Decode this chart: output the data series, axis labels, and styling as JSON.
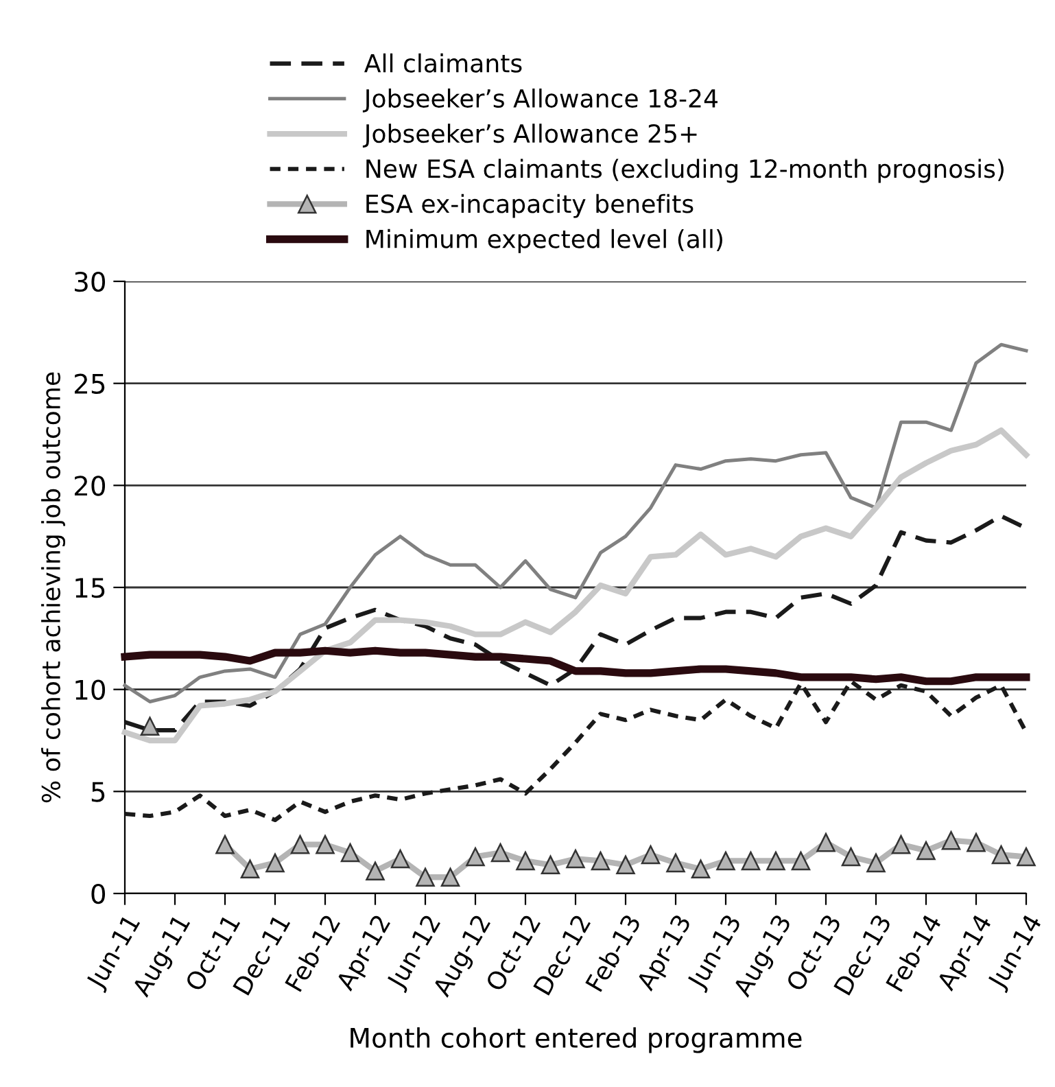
{
  "chart_data": {
    "type": "line",
    "xlabel": "Month cohort entered programme",
    "ylabel": "% of cohort achieving job outcome",
    "categories": [
      "Jun-11",
      null,
      "Aug-11",
      null,
      "Oct-11",
      null,
      "Dec-11",
      null,
      "Feb-12",
      null,
      "Apr-12",
      null,
      "Jun-12",
      null,
      "Aug-12",
      null,
      "Oct-12",
      null,
      "Dec-12",
      null,
      "Feb-13",
      null,
      "Apr-13",
      null,
      "Jun-13",
      null,
      "Aug-13",
      null,
      "Oct-13",
      null,
      "Dec-13",
      null,
      "Feb-14",
      null,
      "Apr-14",
      null,
      "Jun-14"
    ],
    "ylim": [
      0,
      30
    ],
    "yticks": [
      0,
      5,
      10,
      15,
      20,
      25,
      30
    ],
    "grid": "y",
    "legend": "top",
    "series": [
      {
        "name": "All claimants",
        "color": "#1a1a1a",
        "line_style": "dashed",
        "values": [
          8.4,
          8.0,
          8.0,
          9.4,
          9.4,
          9.2,
          9.9,
          11.0,
          13.0,
          13.5,
          13.9,
          13.4,
          13.1,
          12.5,
          12.2,
          11.4,
          10.8,
          10.2,
          11.0,
          12.7,
          12.2,
          12.9,
          13.5,
          13.5,
          13.8,
          13.8,
          13.5,
          14.5,
          14.7,
          14.2,
          15.1,
          17.7,
          17.3,
          17.2,
          17.8,
          18.5,
          17.9
        ]
      },
      {
        "name": "Jobseeker’s Allowance 18-24",
        "color": "#808080",
        "values": [
          10.2,
          9.4,
          9.7,
          10.6,
          10.9,
          11.0,
          10.6,
          12.7,
          13.2,
          15.0,
          16.6,
          17.5,
          16.6,
          16.1,
          16.1,
          15.0,
          16.3,
          14.9,
          14.5,
          16.7,
          17.5,
          18.9,
          21.0,
          20.8,
          21.2,
          21.3,
          21.2,
          21.5,
          21.6,
          19.4,
          18.9,
          23.1,
          23.1,
          22.7,
          26.0,
          26.9,
          26.6
        ]
      },
      {
        "name": "Jobseeker’s Allowance 25+",
        "color": "#c8c8c8",
        "values": [
          7.9,
          7.5,
          7.5,
          9.2,
          9.3,
          9.5,
          9.9,
          10.9,
          11.9,
          12.3,
          13.4,
          13.4,
          13.3,
          13.1,
          12.7,
          12.7,
          13.3,
          12.8,
          13.8,
          15.1,
          14.7,
          16.5,
          16.6,
          17.6,
          16.6,
          16.9,
          16.5,
          17.5,
          17.9,
          17.5,
          18.9,
          20.4,
          21.1,
          21.7,
          22.0,
          22.7,
          21.5
        ]
      },
      {
        "name": "New ESA claimants (excluding 12-month prognosis)",
        "color": "#1a1a1a",
        "line_style": "dotted",
        "values": [
          3.9,
          3.8,
          4.0,
          4.8,
          3.8,
          4.1,
          3.6,
          4.5,
          4.0,
          4.5,
          4.8,
          4.6,
          4.9,
          5.1,
          5.3,
          5.6,
          4.9,
          6.1,
          7.4,
          8.8,
          8.5,
          9.0,
          8.7,
          8.5,
          9.5,
          8.7,
          8.1,
          10.3,
          8.4,
          10.4,
          9.5,
          10.2,
          9.9,
          8.7,
          9.6,
          10.2,
          7.9
        ]
      },
      {
        "name": "ESA ex-incapacity benefits",
        "color": "#b4b4b4",
        "marker": "triangle",
        "values": [
          null,
          8.2,
          null,
          null,
          2.4,
          1.2,
          1.5,
          2.4,
          2.4,
          2.0,
          1.1,
          1.7,
          0.8,
          0.8,
          1.8,
          2.0,
          1.6,
          1.4,
          1.7,
          1.6,
          1.4,
          1.9,
          1.5,
          1.2,
          1.6,
          1.6,
          1.6,
          1.6,
          2.5,
          1.8,
          1.5,
          2.4,
          2.1,
          2.6,
          2.5,
          1.9,
          1.8
        ]
      },
      {
        "name": "Minimum expected level (all)",
        "color": "#2a0a0f",
        "values": [
          11.6,
          11.7,
          11.7,
          11.7,
          11.6,
          11.4,
          11.8,
          11.8,
          11.9,
          11.8,
          11.9,
          11.8,
          11.8,
          11.7,
          11.6,
          11.6,
          11.5,
          11.4,
          10.9,
          10.9,
          10.8,
          10.8,
          10.9,
          11.0,
          11.0,
          10.9,
          10.8,
          10.6,
          10.6,
          10.6,
          10.5,
          10.6,
          10.4,
          10.4,
          10.6,
          10.6,
          10.6
        ]
      }
    ]
  }
}
